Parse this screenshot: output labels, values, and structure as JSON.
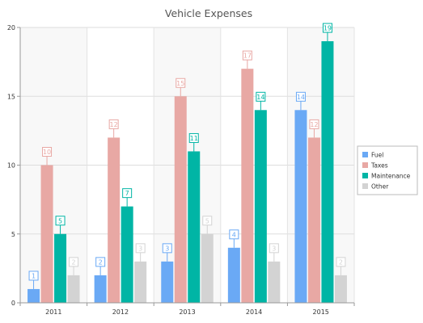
{
  "chart_data": {
    "type": "bar",
    "title": "Vehicle Expenses",
    "xlabel": "",
    "ylabel": "",
    "categories": [
      "2011",
      "2012",
      "2013",
      "2014",
      "2015"
    ],
    "ylim": [
      0,
      20
    ],
    "yticks": [
      0,
      5,
      10,
      15,
      20
    ],
    "grid": true,
    "legend_position": "right",
    "series": [
      {
        "name": "Fuel",
        "color": "#6aa9f5",
        "values": [
          1,
          2,
          3,
          4,
          14
        ]
      },
      {
        "name": "Taxes",
        "color": "#e8a8a4",
        "values": [
          10,
          12,
          15,
          17,
          12
        ]
      },
      {
        "name": "Maintenance",
        "color": "#00b5a5",
        "values": [
          5,
          7,
          11,
          14,
          19
        ]
      },
      {
        "name": "Other",
        "color": "#d3d3d3",
        "values": [
          2,
          3,
          5,
          3,
          2
        ]
      }
    ]
  }
}
